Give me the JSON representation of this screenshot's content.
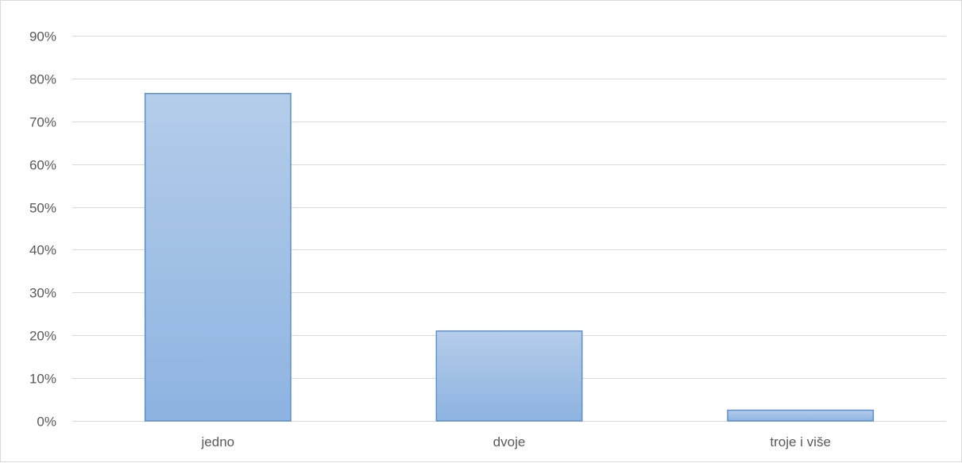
{
  "chart_data": {
    "type": "bar",
    "categories": [
      "jedno",
      "dvoje",
      "troje i više"
    ],
    "values": [
      76.5,
      21.0,
      2.5
    ],
    "y_ticks": [
      "0%",
      "10%",
      "20%",
      "30%",
      "40%",
      "50%",
      "60%",
      "70%",
      "80%",
      "90%"
    ],
    "y_unit": "%",
    "ylim": [
      0,
      90
    ],
    "grid": true,
    "legend": "none",
    "colors": {
      "bar_top": "#b4cdea",
      "bar_bottom": "#8eb3e1",
      "bar_border": "#5b8fcd",
      "grid": "#d9d9d9",
      "text": "#595959"
    }
  }
}
